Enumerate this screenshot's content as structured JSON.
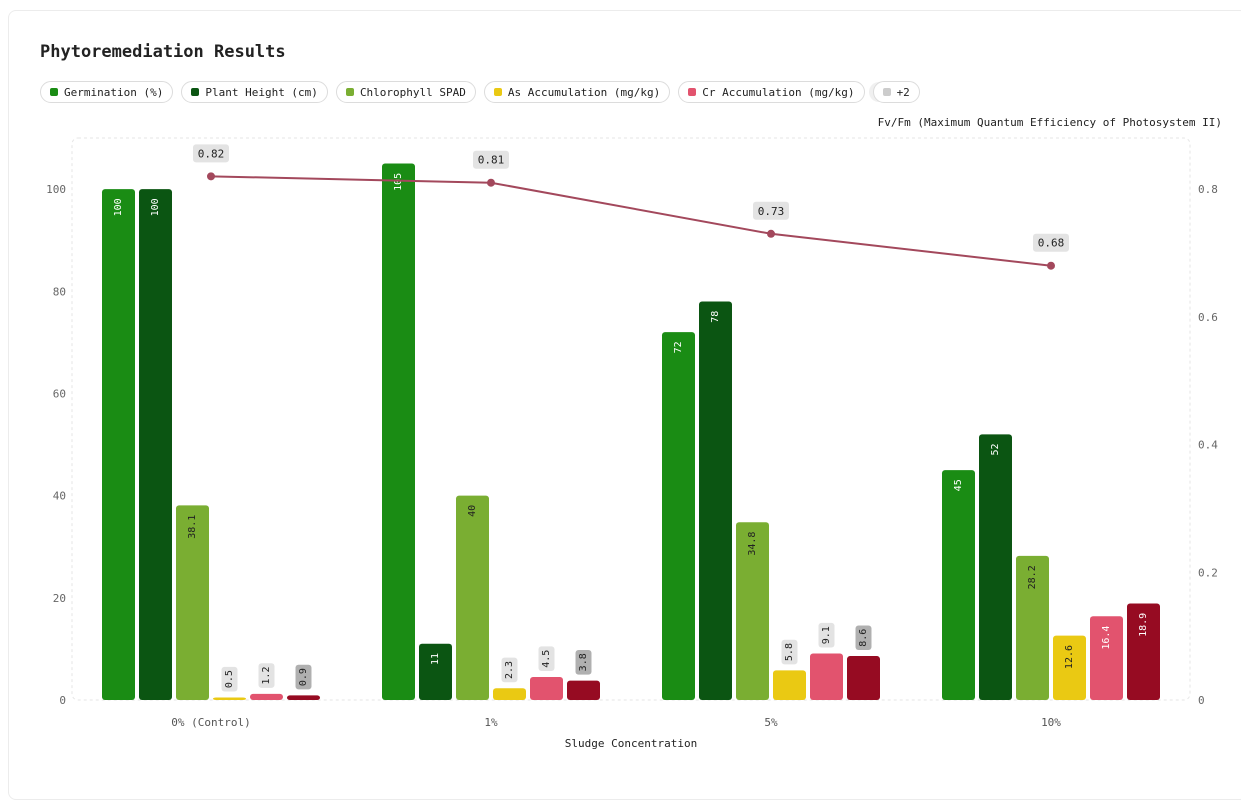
{
  "title": "Phytoremediation Results",
  "legend": [
    {
      "label": "Germination (%)",
      "color": "#1a8c14"
    },
    {
      "label": "Plant Height (cm)",
      "color": "#0b5512"
    },
    {
      "label": "Chlorophyll SPAD",
      "color": "#7aae32"
    },
    {
      "label": "As Accumulation (mg/kg)",
      "color": "#eac913"
    },
    {
      "label": "Cr Accumulation (mg/kg)",
      "color": "#e2536e"
    },
    {
      "label": "+2",
      "color": "#cccccc"
    }
  ],
  "chart_data": {
    "type": "bar",
    "title": "Phytoremediation Results",
    "xlabel": "Sludge Concentration",
    "ylabel": "",
    "y2label": "Fv/Fm (Maximum Quantum Efficiency of Photosystem II)",
    "categories": [
      "0% (Control)",
      "1%",
      "5%",
      "10%"
    ],
    "ylim": [
      0,
      110
    ],
    "yticks": [
      0,
      20,
      40,
      60,
      80,
      100
    ],
    "y2lim": [
      0,
      0.88
    ],
    "y2ticks": [
      0,
      0.2,
      0.4,
      0.6,
      0.8
    ],
    "series": [
      {
        "name": "Germination (%)",
        "color": "#1a8c14",
        "values": [
          100,
          105,
          72,
          45
        ]
      },
      {
        "name": "Plant Height (cm)",
        "color": "#0b5512",
        "values": [
          100,
          11,
          78,
          52
        ]
      },
      {
        "name": "Chlorophyll SPAD",
        "color": "#7aae32",
        "values": [
          38.1,
          40,
          34.8,
          28.2
        ]
      },
      {
        "name": "As Accumulation (mg/kg)",
        "color": "#eac913",
        "values": [
          0.5,
          2.3,
          5.8,
          12.6
        ]
      },
      {
        "name": "Cr Accumulation (mg/kg)",
        "color": "#e2536e",
        "values": [
          1.2,
          4.5,
          9.1,
          16.4
        ]
      },
      {
        "name": "",
        "color": "#960b22",
        "values": [
          0.9,
          3.8,
          8.6,
          18.9
        ]
      }
    ],
    "line": {
      "name": "Fv/Fm (Maximum Quantum Efficiency of Photosystem II)",
      "color": "#a3485c",
      "values": [
        0.82,
        0.81,
        0.73,
        0.68
      ]
    },
    "grid": true
  }
}
